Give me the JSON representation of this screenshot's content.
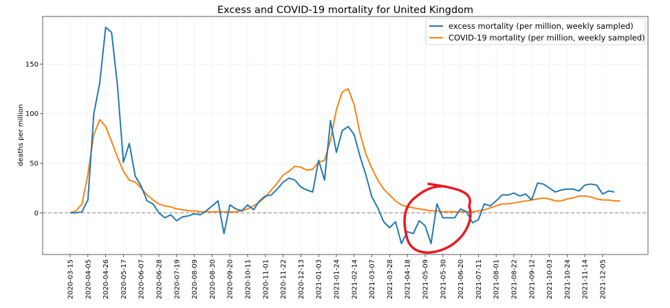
{
  "chart_data": {
    "type": "line",
    "title": "Excess and COVID-19 mortality for United Kingdom",
    "xlabel": "",
    "ylabel": "deaths per million",
    "ylim": [
      -42,
      198
    ],
    "yticks": [
      0,
      50,
      100,
      150
    ],
    "grid": true,
    "legend_position": "top-right",
    "reference_line": {
      "y": 0,
      "style": "dashed",
      "color": "#7f7f7f"
    },
    "x_start": "2020-03-15",
    "x_step": "weekly",
    "xticks": [
      "2020-03-15",
      "2020-04-05",
      "2020-04-26",
      "2020-05-17",
      "2020-06-07",
      "2020-06-28",
      "2020-07-19",
      "2020-08-09",
      "2020-08-30",
      "2020-09-20",
      "2020-10-11",
      "2020-11-01",
      "2020-11-22",
      "2020-12-13",
      "2021-01-03",
      "2021-01-24",
      "2021-02-14",
      "2021-03-07",
      "2021-03-28",
      "2021-04-18",
      "2021-05-09",
      "2021-05-30",
      "2021-06-20",
      "2021-07-11",
      "2021-08-01",
      "2021-08-22",
      "2021-09-12",
      "2021-10-03",
      "2021-10-24",
      "2021-11-14",
      "2021-12-05"
    ],
    "series": [
      {
        "name": "excess mortality (per million, weekly sampled)",
        "color": "#1f77b4",
        "values": [
          0,
          0,
          1,
          13,
          100,
          131,
          187,
          182,
          128,
          51,
          70,
          37,
          27,
          12,
          9,
          0,
          -5,
          -2,
          -8,
          -4,
          -3,
          -1,
          -2,
          2,
          7,
          12,
          -21,
          8,
          4,
          2,
          8,
          3,
          12,
          17,
          18,
          24,
          31,
          35,
          33,
          26,
          23,
          21,
          53,
          33,
          93,
          61,
          83,
          87,
          79,
          57,
          38,
          16,
          5,
          -9,
          -15,
          -9,
          -31,
          -19,
          -21,
          -8,
          -13,
          -31,
          9,
          -5,
          -5,
          -5,
          4,
          1,
          -10,
          -7,
          9,
          7,
          12,
          18,
          18,
          20,
          17,
          19,
          13,
          30,
          29,
          25,
          21,
          23,
          24,
          24,
          22,
          28,
          29,
          28,
          19,
          22,
          21
        ],
        "annotated_region": {
          "from": "2021-04-25",
          "to": "2021-06-27",
          "marker": "red hand-drawn circle"
        }
      },
      {
        "name": "COVID-19 mortality (per million, weekly sampled)",
        "color": "#ff7f0e",
        "values": [
          0,
          2,
          9,
          39,
          79,
          94,
          87,
          72,
          56,
          42,
          33,
          31,
          25,
          18,
          13,
          9,
          7,
          6,
          4,
          3,
          2,
          2,
          1,
          1,
          1,
          1,
          1,
          1,
          1,
          2,
          4,
          7,
          11,
          16,
          23,
          30,
          38,
          42,
          47,
          46,
          43,
          44,
          51,
          53,
          73,
          104,
          122,
          125,
          109,
          80,
          59,
          45,
          33,
          24,
          18,
          12,
          8,
          6,
          5,
          4,
          3,
          2,
          2,
          1,
          1,
          1,
          1,
          1,
          1,
          2,
          3,
          5,
          7,
          9,
          9,
          10,
          11,
          12,
          13,
          14,
          15,
          14,
          12,
          12,
          14,
          15,
          17,
          17,
          16,
          14,
          13,
          13,
          12,
          12
        ]
      }
    ]
  }
}
